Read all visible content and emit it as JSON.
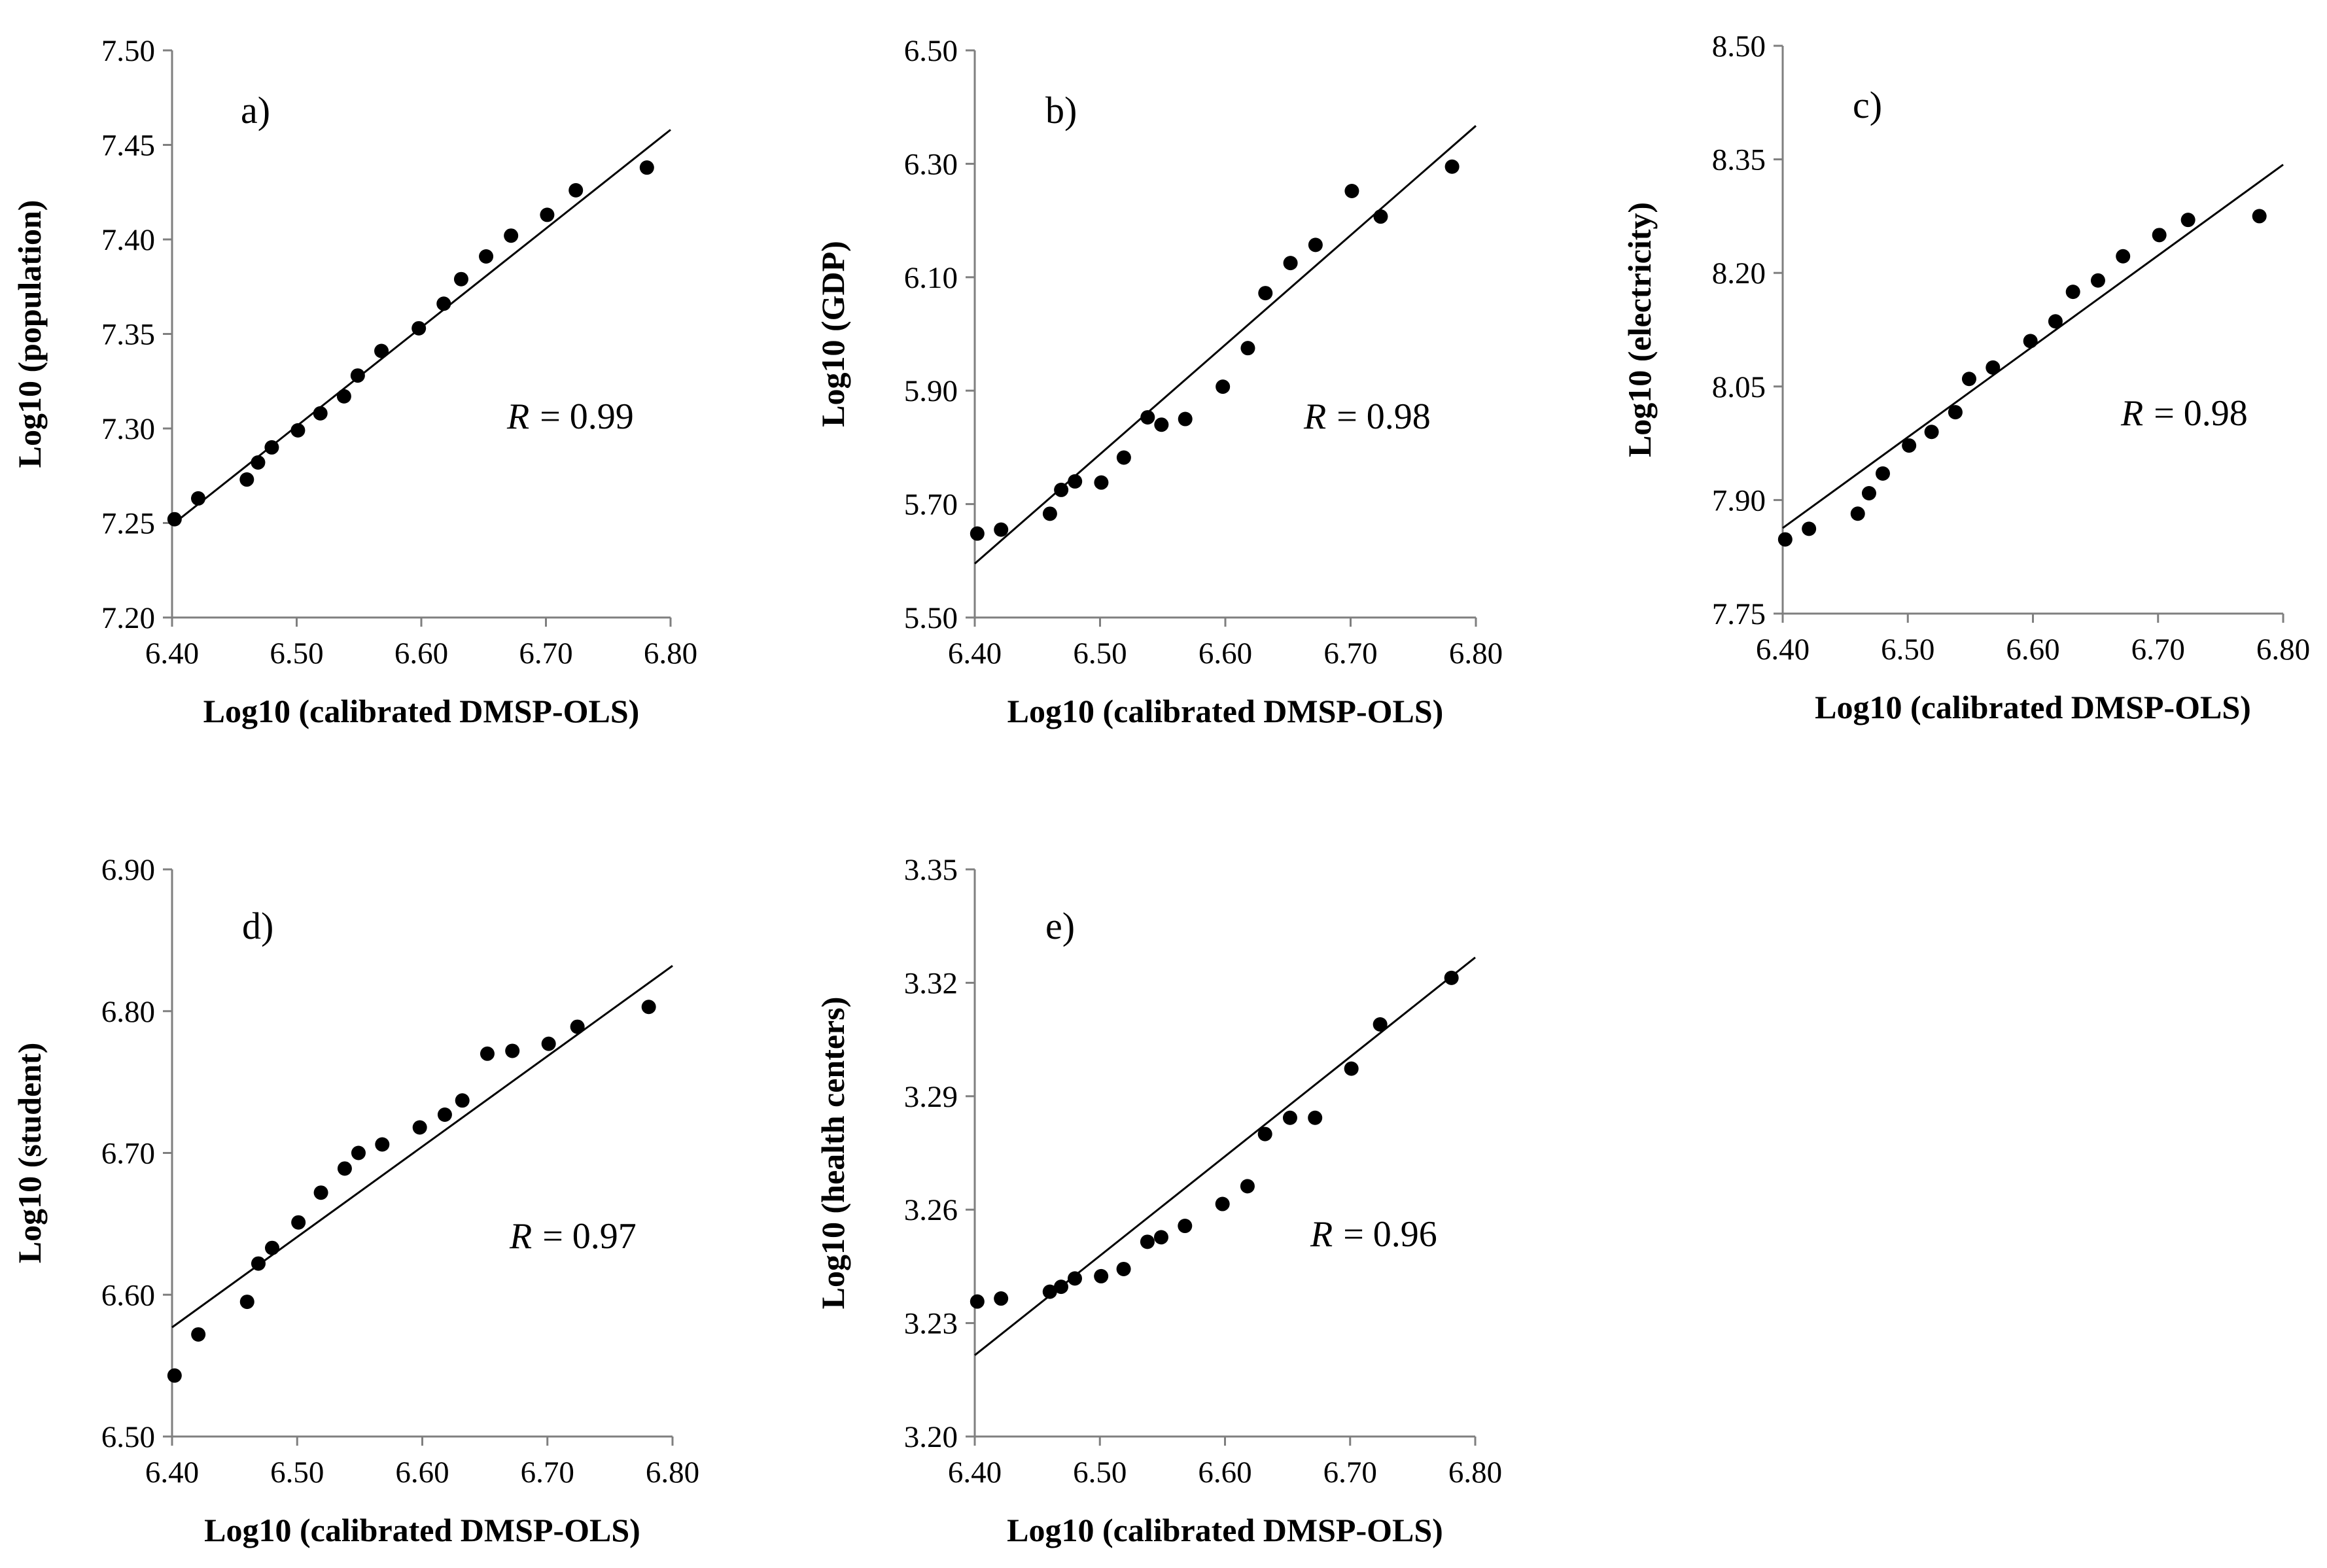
{
  "chart_data": [
    {
      "type": "scatter",
      "panel_label": "a)",
      "xlabel": "Log10 (calibrated DMSP-OLS)",
      "ylabel": "Log10 (population)",
      "xlim": [
        6.4,
        6.8
      ],
      "ylim": [
        7.2,
        7.5
      ],
      "xticks": [
        "6.40",
        "6.50",
        "6.60",
        "6.70",
        "6.80"
      ],
      "yticks": [
        "7.20",
        "7.25",
        "7.30",
        "7.35",
        "7.40",
        "7.45",
        "7.50"
      ],
      "r_symbol": "R",
      "r_value": "= 0.99",
      "fit_line": {
        "x": [
          6.4,
          6.8
        ],
        "y": [
          7.249,
          7.458
        ]
      },
      "x": [
        6.402,
        6.421,
        6.46,
        6.469,
        6.48,
        6.501,
        6.519,
        6.538,
        6.549,
        6.568,
        6.598,
        6.618,
        6.632,
        6.652,
        6.672,
        6.701,
        6.724,
        6.781
      ],
      "y": [
        7.252,
        7.263,
        7.273,
        7.282,
        7.29,
        7.299,
        7.308,
        7.317,
        7.328,
        7.341,
        7.353,
        7.366,
        7.379,
        7.391,
        7.402,
        7.413,
        7.426,
        7.438
      ]
    },
    {
      "type": "scatter",
      "panel_label": "b)",
      "xlabel": "Log10 (calibrated DMSP-OLS)",
      "ylabel": "Log10 (GDP)",
      "xlim": [
        6.4,
        6.8
      ],
      "ylim": [
        5.5,
        6.5
      ],
      "xticks": [
        "6.40",
        "6.50",
        "6.60",
        "6.70",
        "6.80"
      ],
      "yticks": [
        "5.50",
        "5.70",
        "5.90",
        "6.10",
        "6.30",
        "6.50"
      ],
      "r_symbol": "R",
      "r_value": "= 0.98",
      "fit_line": {
        "x": [
          6.4,
          6.8
        ],
        "y": [
          5.595,
          6.367
        ]
      },
      "x": [
        6.402,
        6.421,
        6.46,
        6.469,
        6.48,
        6.501,
        6.519,
        6.538,
        6.549,
        6.568,
        6.598,
        6.618,
        6.632,
        6.652,
        6.672,
        6.701,
        6.724,
        6.781
      ],
      "y": [
        5.648,
        5.655,
        5.683,
        5.725,
        5.74,
        5.738,
        5.782,
        5.853,
        5.84,
        5.85,
        5.907,
        5.975,
        6.072,
        6.125,
        6.157,
        6.252,
        6.207,
        6.295
      ]
    },
    {
      "type": "scatter",
      "panel_label": "c)",
      "xlabel": "Log10 (calibrated DMSP-OLS)",
      "ylabel": "Log10 (electricity)",
      "xlim": [
        6.4,
        6.8
      ],
      "ylim": [
        7.75,
        8.5
      ],
      "xticks": [
        "6.40",
        "6.50",
        "6.60",
        "6.70",
        "6.80"
      ],
      "yticks": [
        "7.75",
        "7.90",
        "8.05",
        "8.20",
        "8.35",
        "8.50"
      ],
      "r_symbol": "R",
      "r_value": "= 0.98",
      "fit_line": {
        "x": [
          6.4,
          6.8
        ],
        "y": [
          7.863,
          8.343
        ]
      },
      "x": [
        6.402,
        6.421,
        6.46,
        6.469,
        6.48,
        6.501,
        6.519,
        6.538,
        6.549,
        6.568,
        6.598,
        6.618,
        6.632,
        6.652,
        6.672,
        6.701,
        6.724,
        6.781
      ],
      "y": [
        7.848,
        7.862,
        7.882,
        7.909,
        7.935,
        7.972,
        7.99,
        8.016,
        8.06,
        8.075,
        8.11,
        8.136,
        8.175,
        8.19,
        8.222,
        8.25,
        8.27,
        8.275
      ]
    },
    {
      "type": "scatter",
      "panel_label": "d)",
      "xlabel": "Log10 (calibrated DMSP-OLS)",
      "ylabel": "Log10 (student)",
      "xlim": [
        6.4,
        6.8
      ],
      "ylim": [
        6.5,
        6.9
      ],
      "xticks": [
        "6.40",
        "6.50",
        "6.60",
        "6.70",
        "6.80"
      ],
      "yticks": [
        "6.50",
        "6.60",
        "6.70",
        "6.80",
        "6.90"
      ],
      "r_symbol": "R",
      "r_value": "= 0.97",
      "fit_line": {
        "x": [
          6.4,
          6.8
        ],
        "y": [
          6.577,
          6.832
        ]
      },
      "x": [
        6.402,
        6.421,
        6.46,
        6.469,
        6.48,
        6.501,
        6.519,
        6.538,
        6.549,
        6.568,
        6.598,
        6.618,
        6.632,
        6.652,
        6.672,
        6.701,
        6.724,
        6.781
      ],
      "y": [
        6.543,
        6.572,
        6.595,
        6.622,
        6.633,
        6.651,
        6.672,
        6.689,
        6.7,
        6.706,
        6.718,
        6.727,
        6.737,
        6.77,
        6.772,
        6.777,
        6.789,
        6.803
      ]
    },
    {
      "type": "scatter",
      "panel_label": "e)",
      "xlabel": "Log10 (calibrated DMSP-OLS)",
      "ylabel": "Log10 (health centers)",
      "xlim": [
        6.4,
        6.8
      ],
      "ylim": [
        3.2,
        3.35
      ],
      "xticks": [
        "6.40",
        "6.50",
        "6.60",
        "6.70",
        "6.80"
      ],
      "yticks": [
        "3.20",
        "3.23",
        "3.26",
        "3.29",
        "3.32",
        "3.35"
      ],
      "r_symbol": "R",
      "r_value": "= 0.96",
      "fit_line": {
        "x": [
          6.4,
          6.8
        ],
        "y": [
          3.2215,
          3.3267
        ]
      },
      "x": [
        6.402,
        6.421,
        6.46,
        6.469,
        6.48,
        6.501,
        6.519,
        6.538,
        6.549,
        6.568,
        6.598,
        6.618,
        6.632,
        6.652,
        6.672,
        6.701,
        6.724,
        6.781
      ],
      "y": [
        3.2357,
        3.2365,
        3.2383,
        3.2396,
        3.2418,
        3.2424,
        3.2443,
        3.2515,
        3.2527,
        3.2557,
        3.2615,
        3.2662,
        3.28,
        3.2843,
        3.2843,
        3.2973,
        3.309,
        3.3213
      ]
    }
  ]
}
